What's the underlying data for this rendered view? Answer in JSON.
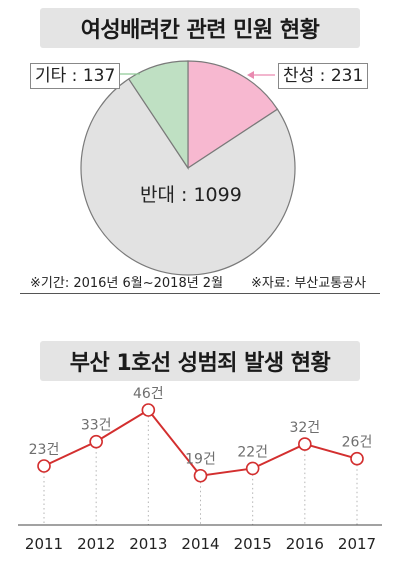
{
  "pie_section": {
    "title": "여성배려칸 관련 민원 현황",
    "label_agree": "찬성 : 231",
    "label_other": "기타 : 137",
    "label_oppose": "반대 : 1099",
    "note_period": "※기간: 2016년 6월~2018년 2월",
    "note_source": "※자료: 부산교통공사",
    "colors": {
      "agree": "#f7b8d0",
      "other": "#bfe0c3",
      "oppose": "#e2e2e2",
      "border": "#7a7a7a"
    }
  },
  "line_section": {
    "title": "부산 1호선 성범죄 발생 현황",
    "colors": {
      "line": "#d32f2f",
      "marker_fill": "#ffffff",
      "label": "#6e6e6e",
      "axis": "#444444"
    }
  },
  "chart_data": [
    {
      "type": "pie",
      "title": "여성배려칸 관련 민원 현황",
      "categories": [
        "반대",
        "찬성",
        "기타"
      ],
      "values": [
        1099,
        231,
        137
      ]
    },
    {
      "type": "line",
      "title": "부산 1호선 성범죄 발생 현황",
      "x": [
        "2011",
        "2012",
        "2013",
        "2014",
        "2015",
        "2016",
        "2017"
      ],
      "series": [
        {
          "values": [
            23,
            33,
            46,
            19,
            22,
            32,
            26
          ]
        }
      ],
      "data_labels": [
        "23건",
        "33건",
        "46건",
        "19건",
        "22건",
        "32건",
        "26건"
      ],
      "ylim": [
        15,
        50
      ],
      "grid": false
    }
  ]
}
